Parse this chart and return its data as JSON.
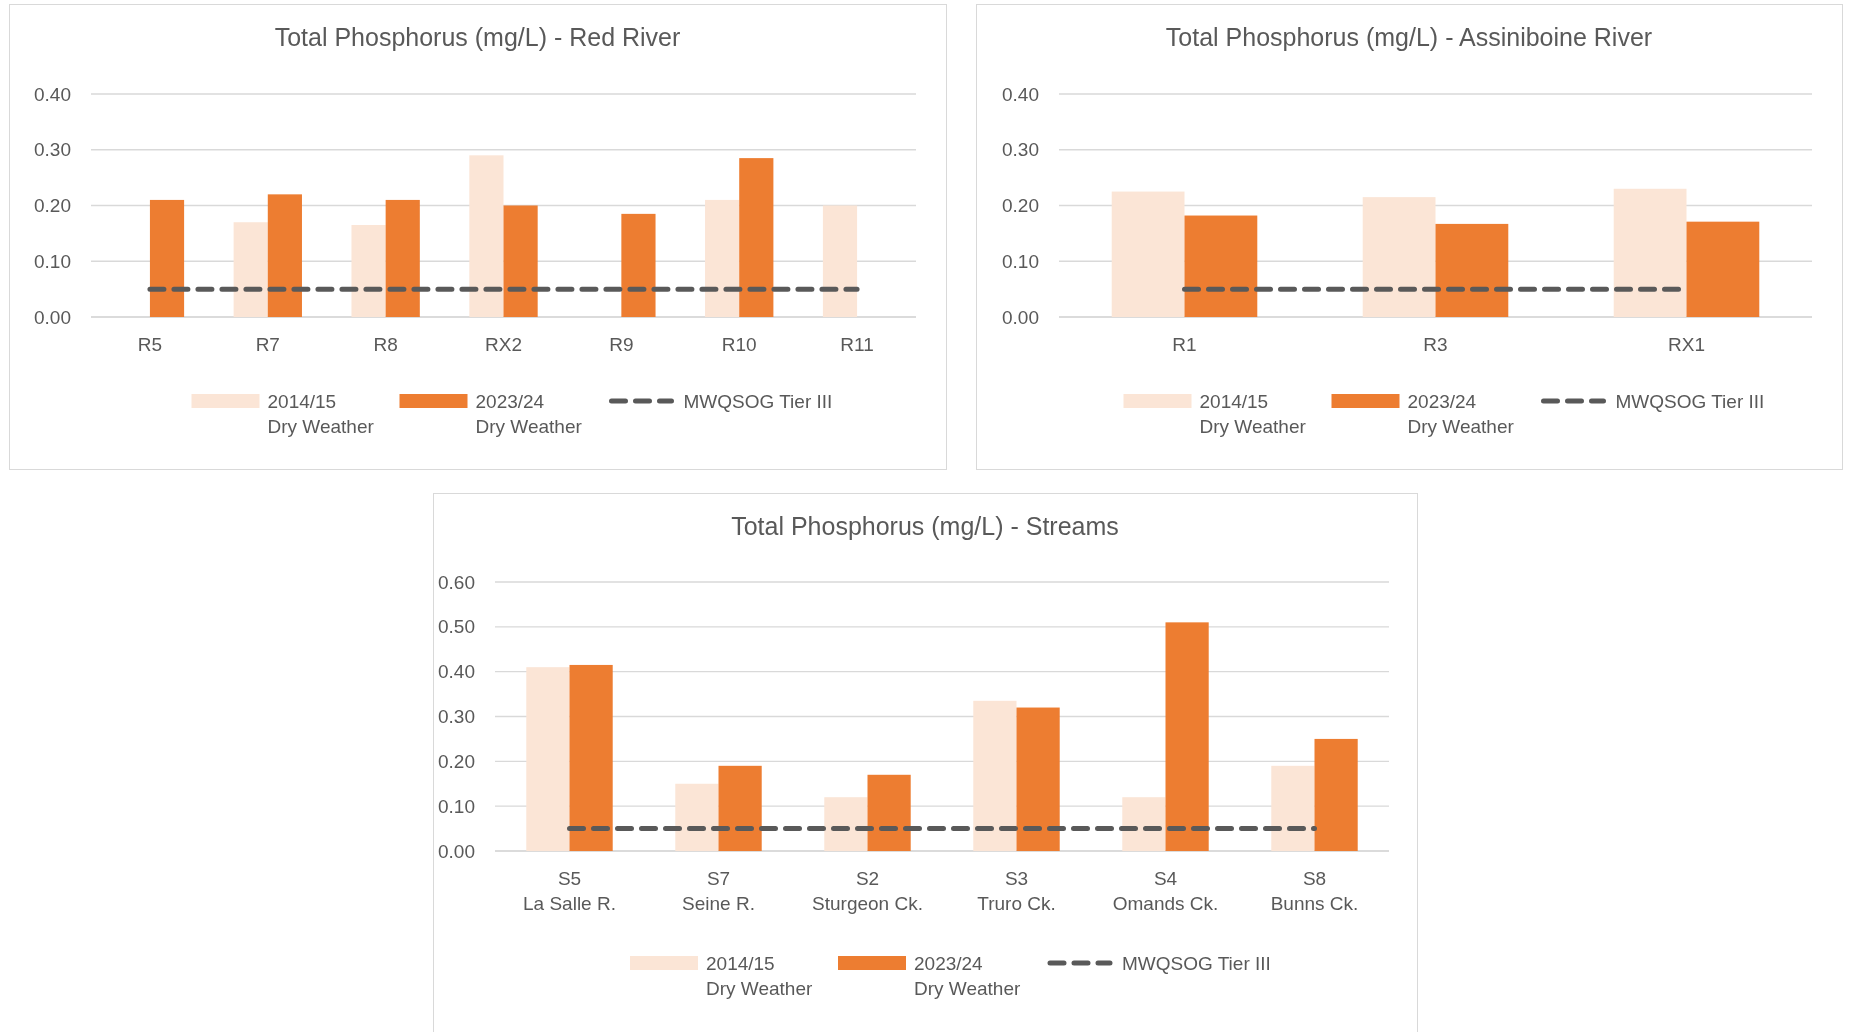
{
  "chart_data": [
    {
      "type": "bar",
      "title": "Total Phosphorus (mg/L) - Red River",
      "categories": [
        "R5",
        "R7",
        "R8",
        "RX2",
        "R9",
        "R10",
        "R11"
      ],
      "series": [
        {
          "name": "2014/15\nDry Weather",
          "color": "#fbe5d6",
          "values": [
            null,
            0.17,
            0.165,
            0.29,
            null,
            0.21,
            0.2
          ]
        },
        {
          "name": "2023/24\nDry Weather",
          "color": "#ed7d31",
          "values": [
            0.21,
            0.22,
            0.21,
            0.2,
            0.185,
            0.285,
            null
          ]
        }
      ],
      "ref_lines": [
        {
          "axis": "y",
          "value": 0.05,
          "label": "MWQSOG Tier III",
          "color": "#595959",
          "line_style": "dashed"
        }
      ],
      "ylim": [
        0,
        0.4
      ],
      "yticks": [
        {
          "value": 0,
          "label": "0.00"
        },
        {
          "value": 0.1,
          "label": "0.10"
        },
        {
          "value": 0.2,
          "label": "0.20"
        },
        {
          "value": 0.3,
          "label": "0.30"
        },
        {
          "value": 0.4,
          "label": "0.40"
        }
      ],
      "grid": "y",
      "legend": "bottom"
    },
    {
      "type": "bar",
      "title": "Total Phosphorus (mg/L) - Assiniboine River",
      "categories": [
        "R1",
        "R3",
        "RX1"
      ],
      "series": [
        {
          "name": "2014/15\nDry Weather",
          "color": "#fbe5d6",
          "values": [
            0.225,
            0.215,
            0.23
          ]
        },
        {
          "name": "2023/24\nDry Weather",
          "color": "#ed7d31",
          "values": [
            0.182,
            0.167,
            0.171
          ]
        }
      ],
      "ref_lines": [
        {
          "axis": "y",
          "value": 0.05,
          "label": "MWQSOG Tier III",
          "color": "#595959",
          "line_style": "dashed"
        }
      ],
      "ylim": [
        0,
        0.4
      ],
      "yticks": [
        {
          "value": 0,
          "label": "0.00"
        },
        {
          "value": 0.1,
          "label": "0.10"
        },
        {
          "value": 0.2,
          "label": "0.20"
        },
        {
          "value": 0.3,
          "label": "0.30"
        },
        {
          "value": 0.4,
          "label": "0.40"
        }
      ],
      "grid": "y",
      "legend": "bottom"
    },
    {
      "type": "bar",
      "title": "Total Phosphorus (mg/L) - Streams",
      "categories": [
        "S5\nLa Salle R.",
        "S7\nSeine R.",
        "S2\nSturgeon Ck.",
        "S3\nTruro Ck.",
        "S4\nOmands Ck.",
        "S8\nBunns Ck."
      ],
      "series": [
        {
          "name": "2014/15\nDry Weather",
          "color": "#fbe5d6",
          "values": [
            0.41,
            0.15,
            0.12,
            0.335,
            0.12,
            0.19
          ]
        },
        {
          "name": "2023/24\nDry Weather",
          "color": "#ed7d31",
          "values": [
            0.415,
            0.19,
            0.17,
            0.32,
            0.51,
            0.25
          ]
        }
      ],
      "ref_lines": [
        {
          "axis": "y",
          "value": 0.05,
          "label": "MWQSOG Tier III",
          "color": "#595959",
          "line_style": "dashed"
        }
      ],
      "ylim": [
        0,
        0.6
      ],
      "yticks": [
        {
          "value": 0,
          "label": "0.00"
        },
        {
          "value": 0.1,
          "label": "0.10"
        },
        {
          "value": 0.2,
          "label": "0.20"
        },
        {
          "value": 0.3,
          "label": "0.30"
        },
        {
          "value": 0.4,
          "label": "0.40"
        },
        {
          "value": 0.5,
          "label": "0.50"
        },
        {
          "value": 0.6,
          "label": "0.60"
        }
      ],
      "grid": "y",
      "legend": "bottom"
    }
  ]
}
